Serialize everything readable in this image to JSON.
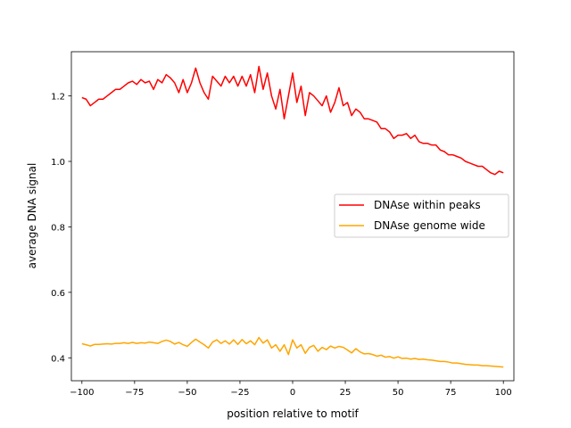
{
  "chart_data": {
    "type": "line",
    "title": "",
    "xlabel": "position relative to motif",
    "ylabel": "average DNA signal",
    "xlim": [
      -105,
      105
    ],
    "ylim": [
      0.33,
      1.335
    ],
    "xticks": [
      -100,
      -75,
      -50,
      -25,
      0,
      25,
      50,
      75,
      100
    ],
    "xtick_labels": [
      "−100",
      "−75",
      "−50",
      "−25",
      "0",
      "25",
      "50",
      "75",
      "100"
    ],
    "yticks": [
      0.4,
      0.6,
      0.8,
      1.0,
      1.2
    ],
    "ytick_labels": [
      "0.4",
      "0.6",
      "0.8",
      "1.0",
      "1.2"
    ],
    "legend_position": "center-right",
    "series": [
      {
        "name": "DNAse within peaks",
        "color": "#ff0000",
        "x": [
          -100,
          -98,
          -96,
          -94,
          -92,
          -90,
          -88,
          -86,
          -84,
          -82,
          -80,
          -78,
          -76,
          -74,
          -72,
          -70,
          -68,
          -66,
          -64,
          -62,
          -60,
          -58,
          -56,
          -54,
          -52,
          -50,
          -48,
          -46,
          -44,
          -42,
          -40,
          -38,
          -36,
          -34,
          -32,
          -30,
          -28,
          -26,
          -24,
          -22,
          -20,
          -18,
          -16,
          -14,
          -12,
          -10,
          -8,
          -6,
          -4,
          -2,
          0,
          2,
          4,
          6,
          8,
          10,
          12,
          14,
          16,
          18,
          20,
          22,
          24,
          26,
          28,
          30,
          32,
          34,
          36,
          38,
          40,
          42,
          44,
          46,
          48,
          50,
          52,
          54,
          56,
          58,
          60,
          62,
          64,
          66,
          68,
          70,
          72,
          74,
          76,
          78,
          80,
          82,
          84,
          86,
          88,
          90,
          92,
          94,
          96,
          98,
          100
        ],
        "y": [
          1.195,
          1.19,
          1.17,
          1.18,
          1.19,
          1.19,
          1.2,
          1.21,
          1.22,
          1.22,
          1.23,
          1.24,
          1.245,
          1.235,
          1.25,
          1.24,
          1.245,
          1.22,
          1.25,
          1.24,
          1.265,
          1.255,
          1.24,
          1.21,
          1.25,
          1.21,
          1.24,
          1.285,
          1.24,
          1.21,
          1.19,
          1.26,
          1.245,
          1.23,
          1.26,
          1.24,
          1.26,
          1.23,
          1.26,
          1.23,
          1.265,
          1.21,
          1.29,
          1.22,
          1.27,
          1.2,
          1.16,
          1.22,
          1.13,
          1.2,
          1.27,
          1.18,
          1.23,
          1.14,
          1.21,
          1.2,
          1.185,
          1.17,
          1.2,
          1.15,
          1.18,
          1.225,
          1.17,
          1.18,
          1.14,
          1.16,
          1.15,
          1.13,
          1.13,
          1.125,
          1.12,
          1.1,
          1.1,
          1.09,
          1.07,
          1.08,
          1.08,
          1.085,
          1.07,
          1.08,
          1.06,
          1.055,
          1.055,
          1.05,
          1.05,
          1.035,
          1.03,
          1.02,
          1.02,
          1.015,
          1.01,
          1.0,
          0.995,
          0.99,
          0.985,
          0.985,
          0.975,
          0.965,
          0.96,
          0.97,
          0.965
        ]
      },
      {
        "name": "DNAse genome wide",
        "color": "#ffa500",
        "x": [
          -100,
          -98,
          -96,
          -94,
          -92,
          -90,
          -88,
          -86,
          -84,
          -82,
          -80,
          -78,
          -76,
          -74,
          -72,
          -70,
          -68,
          -66,
          -64,
          -62,
          -60,
          -58,
          -56,
          -54,
          -52,
          -50,
          -48,
          -46,
          -44,
          -42,
          -40,
          -38,
          -36,
          -34,
          -32,
          -30,
          -28,
          -26,
          -24,
          -22,
          -20,
          -18,
          -16,
          -14,
          -12,
          -10,
          -8,
          -6,
          -4,
          -2,
          0,
          2,
          4,
          6,
          8,
          10,
          12,
          14,
          16,
          18,
          20,
          22,
          24,
          26,
          28,
          30,
          32,
          34,
          36,
          38,
          40,
          42,
          44,
          46,
          48,
          50,
          52,
          54,
          56,
          58,
          60,
          62,
          64,
          66,
          68,
          70,
          72,
          74,
          76,
          78,
          80,
          82,
          84,
          86,
          88,
          90,
          92,
          94,
          96,
          98,
          100
        ],
        "y": [
          0.443,
          0.44,
          0.436,
          0.441,
          0.441,
          0.442,
          0.443,
          0.442,
          0.444,
          0.444,
          0.446,
          0.444,
          0.447,
          0.444,
          0.446,
          0.445,
          0.448,
          0.446,
          0.444,
          0.45,
          0.454,
          0.45,
          0.442,
          0.447,
          0.44,
          0.435,
          0.447,
          0.457,
          0.448,
          0.44,
          0.43,
          0.448,
          0.455,
          0.444,
          0.452,
          0.442,
          0.455,
          0.441,
          0.456,
          0.443,
          0.452,
          0.44,
          0.462,
          0.445,
          0.455,
          0.43,
          0.44,
          0.42,
          0.44,
          0.41,
          0.455,
          0.43,
          0.44,
          0.414,
          0.432,
          0.438,
          0.42,
          0.432,
          0.425,
          0.436,
          0.43,
          0.435,
          0.432,
          0.424,
          0.415,
          0.428,
          0.418,
          0.412,
          0.413,
          0.41,
          0.405,
          0.408,
          0.402,
          0.404,
          0.399,
          0.403,
          0.398,
          0.399,
          0.396,
          0.398,
          0.395,
          0.396,
          0.394,
          0.393,
          0.391,
          0.389,
          0.389,
          0.387,
          0.384,
          0.384,
          0.382,
          0.38,
          0.379,
          0.378,
          0.378,
          0.376,
          0.376,
          0.375,
          0.374,
          0.373,
          0.372
        ]
      }
    ]
  }
}
